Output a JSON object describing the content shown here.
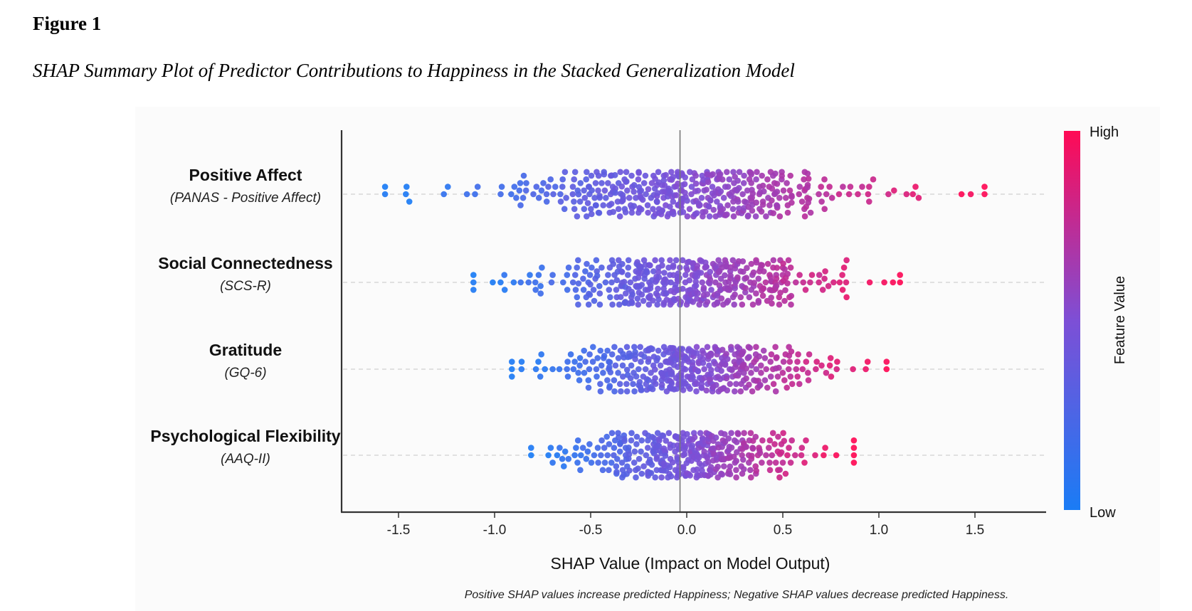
{
  "figure": {
    "label": "Figure 1",
    "caption": "SHAP Summary Plot of Predictor Contributions to Happiness in the Stacked Generalization Model"
  },
  "chart_data": {
    "type": "scatter",
    "subtype": "shap-beeswarm",
    "xlabel": "SHAP Value (Impact on Model Output)",
    "note": "Positive SHAP values increase predicted Happiness; Negative SHAP values decrease predicted Happiness.",
    "xlim": [
      -1.8,
      1.87
    ],
    "xticks": [
      -1.5,
      -1.0,
      -0.5,
      0.0,
      0.5,
      1.0,
      1.5
    ],
    "xtick_labels": [
      "-1.5",
      "-1.0",
      "-0.5",
      "0.0",
      "0.5",
      "1.0",
      "1.5"
    ],
    "reference_line_x": -0.035,
    "grid": false,
    "colorbar": {
      "title": "Feature Value",
      "high_label": "High",
      "low_label": "Low",
      "low_color": "#1a7cf5",
      "mid_color": "#7d4fd6",
      "high_color": "#ff0a55",
      "placement": "right"
    },
    "features": [
      {
        "name": "Positive Affect",
        "measure": "(PANAS - Positive Affect)",
        "shap_min": -1.57,
        "shap_max": 1.55,
        "n_points": 420,
        "spread": 0.42,
        "center": 0.0
      },
      {
        "name": "Social Connectedness",
        "measure": "(SCS-R)",
        "shap_min": -1.11,
        "shap_max": 1.11,
        "n_points": 400,
        "spread": 0.34,
        "center": 0.0
      },
      {
        "name": "Gratitude",
        "measure": "(GQ-6)",
        "shap_min": -0.91,
        "shap_max": 1.04,
        "n_points": 390,
        "spread": 0.32,
        "center": 0.02
      },
      {
        "name": "Psychological Flexibility",
        "measure": "(AAQ-II)",
        "shap_min": -0.81,
        "shap_max": 0.87,
        "n_points": 360,
        "spread": 0.28,
        "center": 0.02
      }
    ]
  }
}
